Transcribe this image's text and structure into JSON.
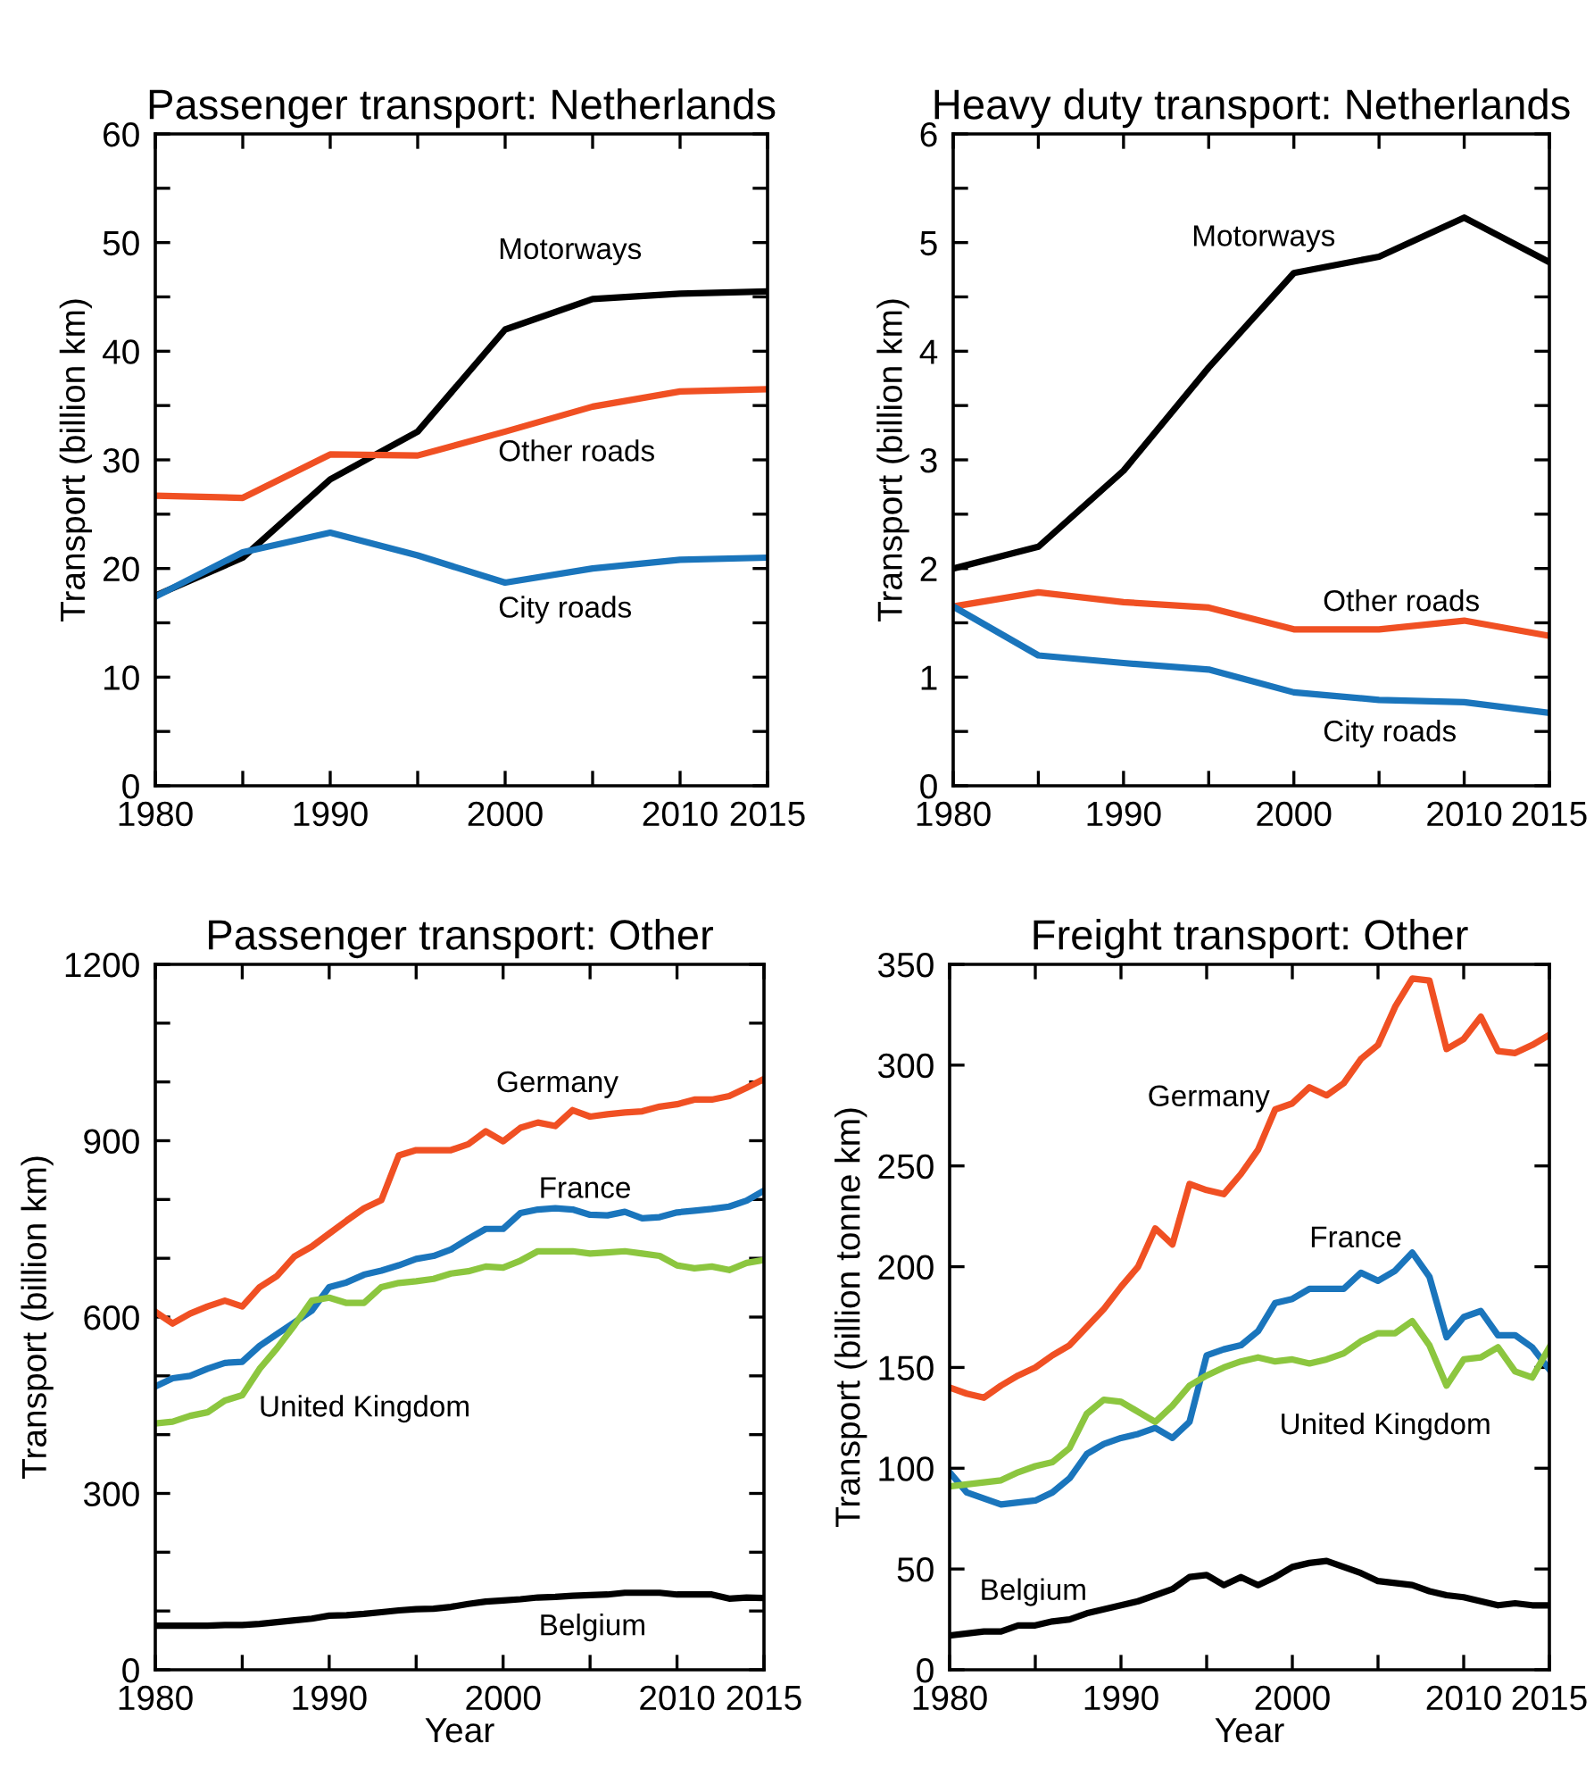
{
  "chart_data": [
    {
      "type": "line",
      "title": "Passenger transport: Netherlands",
      "ylabel": "Transport (billion km)",
      "x": [
        1980,
        1985,
        1990,
        1995,
        2000,
        2005,
        2010,
        2015
      ],
      "series": [
        {
          "name": "Motorways",
          "color": "#000000",
          "values": [
            17.5,
            21,
            28.2,
            32.6,
            42,
            44.8,
            45.3,
            45.5
          ]
        },
        {
          "name": "Other roads",
          "color": "#f05023",
          "values": [
            26.7,
            26.5,
            30.5,
            30.4,
            32.6,
            34.9,
            36.3,
            36.5
          ]
        },
        {
          "name": "City roads",
          "color": "#1a75bc",
          "values": [
            17.4,
            21.5,
            23.3,
            21.2,
            18.7,
            20,
            20.8,
            21
          ]
        }
      ],
      "xlim": [
        1980,
        2015
      ],
      "xticks": [
        1980,
        {
          "value": 1985,
          "label": null
        },
        1990,
        {
          "value": 1995,
          "label": null
        },
        2000,
        {
          "value": 2005,
          "label": null
        },
        2010,
        2015
      ],
      "ylim": [
        0,
        60
      ],
      "yticks": [
        0,
        {
          "value": 5,
          "label": null
        },
        10,
        {
          "value": 15,
          "label": null
        },
        20,
        {
          "value": 25,
          "label": null
        },
        30,
        {
          "value": 35,
          "label": null
        },
        40,
        {
          "value": 45,
          "label": null
        },
        50,
        {
          "value": 55,
          "label": null
        },
        60
      ],
      "grid": false,
      "legend": false,
      "marker": "none",
      "line_style": "solid"
    },
    {
      "type": "line",
      "title": "Heavy duty transport: Netherlands",
      "ylabel": "Transport (billion km)",
      "x": [
        1980,
        1985,
        1990,
        1995,
        2000,
        2005,
        2010,
        2015
      ],
      "series": [
        {
          "name": "Motorways",
          "color": "#000000",
          "values": [
            2.0,
            2.2,
            2.9,
            3.85,
            4.72,
            4.87,
            5.23,
            4.82
          ]
        },
        {
          "name": "Other roads",
          "color": "#f05023",
          "values": [
            1.65,
            1.78,
            1.69,
            1.64,
            1.44,
            1.44,
            1.52,
            1.38
          ]
        },
        {
          "name": "City roads",
          "color": "#1a75bc",
          "values": [
            1.65,
            1.2,
            1.13,
            1.07,
            0.86,
            0.79,
            0.77,
            0.67
          ]
        }
      ],
      "xlim": [
        1980,
        2015
      ],
      "xticks": [
        1980,
        {
          "value": 1985,
          "label": null
        },
        1990,
        {
          "value": 1995,
          "label": null
        },
        2000,
        {
          "value": 2005,
          "label": null
        },
        2010,
        2015
      ],
      "ylim": [
        0,
        6
      ],
      "yticks": [
        0,
        {
          "value": 0.5,
          "label": null
        },
        1,
        {
          "value": 1.5,
          "label": null
        },
        2,
        {
          "value": 2.5,
          "label": null
        },
        3,
        {
          "value": 3.5,
          "label": null
        },
        4,
        {
          "value": 4.5,
          "label": null
        },
        5,
        {
          "value": 5.5,
          "label": null
        },
        6
      ],
      "grid": false,
      "legend": false,
      "marker": "none",
      "line_style": "solid"
    },
    {
      "type": "line",
      "title": "Passenger transport: Other",
      "xlabel": "Year",
      "ylabel": "Transport (billion km)",
      "x": [
        1980,
        1981,
        1982,
        1983,
        1984,
        1985,
        1986,
        1987,
        1988,
        1989,
        1990,
        1991,
        1992,
        1993,
        1994,
        1995,
        1996,
        1997,
        1998,
        1999,
        2000,
        2001,
        2002,
        2003,
        2004,
        2005,
        2006,
        2007,
        2008,
        2009,
        2010,
        2011,
        2012,
        2013,
        2014,
        2015
      ],
      "series": [
        {
          "name": "Germany",
          "color": "#f05023",
          "values": [
            609,
            589,
            606,
            618,
            628,
            618,
            651,
            670,
            703,
            720,
            742,
            764,
            785,
            799,
            875,
            884,
            884,
            884,
            894,
            916,
            899,
            922,
            931,
            925,
            952,
            941,
            945,
            948,
            950,
            958,
            962,
            970,
            970,
            976,
            990,
            1005
          ]
        },
        {
          "name": "France",
          "color": "#1a75bc",
          "values": [
            482,
            496,
            500,
            512,
            522,
            524,
            551,
            571,
            591,
            611,
            651,
            659,
            672,
            679,
            688,
            699,
            704,
            715,
            733,
            750,
            750,
            777,
            783,
            785,
            783,
            774,
            773,
            779,
            768,
            770,
            778,
            781,
            784,
            788,
            798,
            815
          ]
        },
        {
          "name": "United Kingdom",
          "color": "#8cc63f",
          "values": [
            419,
            422,
            432,
            438,
            458,
            467,
            512,
            547,
            586,
            628,
            633,
            624,
            624,
            651,
            658,
            661,
            665,
            674,
            678,
            686,
            684,
            696,
            712,
            712,
            712,
            708,
            710,
            712,
            708,
            704,
            688,
            683,
            686,
            680,
            692,
            697
          ]
        },
        {
          "name": "Belgium",
          "color": "#000000",
          "values": [
            75,
            75,
            75,
            75,
            76,
            76,
            78,
            81,
            84,
            87,
            92,
            93,
            95,
            98,
            101,
            103,
            104,
            107,
            112,
            116,
            118,
            120,
            123,
            124,
            126,
            127,
            128,
            131,
            131,
            131,
            128,
            128,
            128,
            121,
            123,
            122
          ]
        }
      ],
      "xlim": [
        1980,
        2015
      ],
      "xticks": [
        1980,
        {
          "value": 1985,
          "label": null
        },
        1990,
        {
          "value": 1995,
          "label": null
        },
        2000,
        {
          "value": 2005,
          "label": null
        },
        2010,
        2015
      ],
      "ylim": [
        0,
        1200
      ],
      "yticks": [
        0,
        {
          "value": 100,
          "label": null
        },
        {
          "value": 200,
          "label": null
        },
        300,
        {
          "value": 400,
          "label": null
        },
        {
          "value": 500,
          "label": null
        },
        600,
        {
          "value": 700,
          "label": null
        },
        {
          "value": 800,
          "label": null
        },
        900,
        {
          "value": 1000,
          "label": null
        },
        {
          "value": 1100,
          "label": null
        },
        1200
      ],
      "grid": false,
      "legend": false,
      "marker": "none",
      "line_style": "solid"
    },
    {
      "type": "line",
      "title": "Freight transport: Other",
      "xlabel": "Year",
      "ylabel": "Transport (billion tonne km)",
      "x": [
        1980,
        1981,
        1982,
        1983,
        1984,
        1985,
        1986,
        1987,
        1988,
        1989,
        1990,
        1991,
        1992,
        1993,
        1994,
        1995,
        1996,
        1997,
        1998,
        1999,
        2000,
        2001,
        2002,
        2003,
        2004,
        2005,
        2006,
        2007,
        2008,
        2009,
        2010,
        2011,
        2012,
        2013,
        2014,
        2015
      ],
      "series": [
        {
          "name": "Germany",
          "color": "#f05023",
          "values": [
            140,
            137,
            135,
            141,
            146,
            150,
            156,
            161,
            170,
            179,
            190,
            200,
            219,
            211,
            241,
            238,
            236,
            246,
            258,
            278,
            281,
            289,
            285,
            291,
            303,
            310,
            329,
            343,
            342,
            308,
            313,
            324,
            307,
            306,
            310,
            315
          ]
        },
        {
          "name": "France",
          "color": "#1a75bc",
          "values": [
            98,
            88,
            85,
            82,
            83,
            84,
            88,
            95,
            107,
            112,
            115,
            117,
            120,
            115,
            123,
            156,
            159,
            161,
            168,
            182,
            184,
            189,
            189,
            189,
            197,
            193,
            198,
            207,
            195,
            165,
            175,
            178,
            166,
            166,
            160,
            149
          ]
        },
        {
          "name": "United Kingdom",
          "color": "#8cc63f",
          "values": [
            91,
            92,
            93,
            94,
            98,
            101,
            103,
            110,
            127,
            134,
            133,
            128,
            123,
            131,
            141,
            146,
            150,
            153,
            155,
            153,
            154,
            152,
            154,
            157,
            163,
            167,
            167,
            173,
            161,
            141,
            154,
            155,
            160,
            148,
            145,
            160
          ]
        },
        {
          "name": "Belgium",
          "color": "#000000",
          "values": [
            17,
            18,
            19,
            19,
            22,
            22,
            24,
            25,
            28,
            30,
            32,
            34,
            37,
            40,
            46,
            47,
            42,
            46,
            42,
            46,
            51,
            53,
            54,
            51,
            48,
            44,
            43,
            42,
            39,
            37,
            36,
            34,
            32,
            33,
            32,
            32
          ]
        }
      ],
      "xlim": [
        1980,
        2015
      ],
      "xticks": [
        1980,
        {
          "value": 1985,
          "label": null
        },
        1990,
        {
          "value": 1995,
          "label": null
        },
        2000,
        {
          "value": 2005,
          "label": null
        },
        2010,
        2015
      ],
      "ylim": [
        0,
        350
      ],
      "yticks": [
        0,
        50,
        100,
        150,
        200,
        250,
        300,
        350
      ],
      "grid": false,
      "legend": false,
      "marker": "none",
      "line_style": "solid"
    }
  ]
}
